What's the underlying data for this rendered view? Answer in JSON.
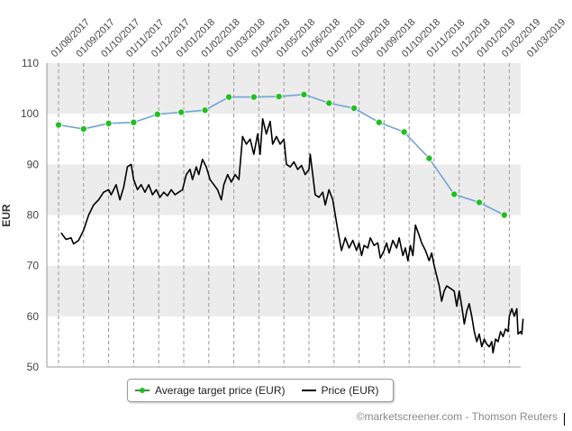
{
  "chart_data": {
    "type": "line",
    "title": "",
    "xlabel": "",
    "ylabel": "EUR",
    "ylim": [
      50,
      110
    ],
    "yticks": [
      50,
      60,
      70,
      80,
      90,
      100,
      110
    ],
    "x_tick_labels": [
      "01/08/2017",
      "01/09/2017",
      "01/10/2017",
      "01/11/2017",
      "01/12/2017",
      "01/01/2018",
      "01/02/2018",
      "01/03/2018",
      "01/04/2018",
      "01/05/2018",
      "01/06/2018",
      "01/07/2018",
      "01/08/2018",
      "01/09/2018",
      "01/10/2018",
      "01/11/2018",
      "01/12/2018",
      "01/01/2019",
      "01/02/2019",
      "01/03/2019"
    ],
    "series": [
      {
        "name": "Average target price (EUR)",
        "style": "dashed-with-markers",
        "color": "#6fa3d8",
        "marker_color": "#1fc01f",
        "points": [
          {
            "month": 0.0,
            "value": 97.8
          },
          {
            "month": 1.0,
            "value": 97.0
          },
          {
            "month": 2.0,
            "value": 98.1
          },
          {
            "month": 3.0,
            "value": 98.3
          },
          {
            "month": 3.95,
            "value": 99.9
          },
          {
            "month": 4.9,
            "value": 100.3
          },
          {
            "month": 5.85,
            "value": 100.7
          },
          {
            "month": 6.8,
            "value": 103.3
          },
          {
            "month": 7.8,
            "value": 103.3
          },
          {
            "month": 8.8,
            "value": 103.4
          },
          {
            "month": 9.8,
            "value": 103.8
          },
          {
            "month": 10.8,
            "value": 102.1
          },
          {
            "month": 11.8,
            "value": 101.1
          },
          {
            "month": 12.8,
            "value": 98.3
          },
          {
            "month": 13.8,
            "value": 96.4
          },
          {
            "month": 14.8,
            "value": 91.2
          },
          {
            "month": 15.8,
            "value": 84.1
          },
          {
            "month": 16.8,
            "value": 82.5
          },
          {
            "month": 17.8,
            "value": 80.0
          }
        ]
      },
      {
        "name": "Price (EUR)",
        "style": "solid",
        "color": "#000000",
        "points": [
          {
            "month": 0.1,
            "value": 76.5
          },
          {
            "month": 0.3,
            "value": 75.2
          },
          {
            "month": 0.5,
            "value": 75.5
          },
          {
            "month": 0.6,
            "value": 74.3
          },
          {
            "month": 0.8,
            "value": 75.0
          },
          {
            "month": 1.0,
            "value": 77.0
          },
          {
            "month": 1.2,
            "value": 80.0
          },
          {
            "month": 1.4,
            "value": 82.0
          },
          {
            "month": 1.6,
            "value": 83.0
          },
          {
            "month": 1.8,
            "value": 84.5
          },
          {
            "month": 2.0,
            "value": 85.0
          },
          {
            "month": 2.1,
            "value": 84.0
          },
          {
            "month": 2.3,
            "value": 86.0
          },
          {
            "month": 2.45,
            "value": 83.0
          },
          {
            "month": 2.6,
            "value": 85.5
          },
          {
            "month": 2.75,
            "value": 89.5
          },
          {
            "month": 2.9,
            "value": 90.0
          },
          {
            "month": 3.0,
            "value": 87.0
          },
          {
            "month": 3.15,
            "value": 85.0
          },
          {
            "month": 3.3,
            "value": 86.0
          },
          {
            "month": 3.45,
            "value": 84.5
          },
          {
            "month": 3.6,
            "value": 86.0
          },
          {
            "month": 3.75,
            "value": 84.0
          },
          {
            "month": 3.9,
            "value": 85.0
          },
          {
            "month": 4.05,
            "value": 83.5
          },
          {
            "month": 4.2,
            "value": 84.5
          },
          {
            "month": 4.35,
            "value": 83.8
          },
          {
            "month": 4.5,
            "value": 85.0
          },
          {
            "month": 4.65,
            "value": 84.0
          },
          {
            "month": 4.8,
            "value": 84.5
          },
          {
            "month": 4.95,
            "value": 85.0
          },
          {
            "month": 5.1,
            "value": 88.0
          },
          {
            "month": 5.25,
            "value": 89.0
          },
          {
            "month": 5.35,
            "value": 87.0
          },
          {
            "month": 5.5,
            "value": 89.5
          },
          {
            "month": 5.6,
            "value": 88.0
          },
          {
            "month": 5.75,
            "value": 91.0
          },
          {
            "month": 5.9,
            "value": 89.5
          },
          {
            "month": 6.05,
            "value": 87.0
          },
          {
            "month": 6.2,
            "value": 86.0
          },
          {
            "month": 6.35,
            "value": 85.0
          },
          {
            "month": 6.5,
            "value": 83.0
          },
          {
            "month": 6.6,
            "value": 86.0
          },
          {
            "month": 6.75,
            "value": 88.0
          },
          {
            "month": 6.9,
            "value": 86.5
          },
          {
            "month": 7.05,
            "value": 88.0
          },
          {
            "month": 7.2,
            "value": 87.0
          },
          {
            "month": 7.35,
            "value": 95.5
          },
          {
            "month": 7.5,
            "value": 94.0
          },
          {
            "month": 7.65,
            "value": 95.0
          },
          {
            "month": 7.8,
            "value": 92.0
          },
          {
            "month": 7.95,
            "value": 96.0
          },
          {
            "month": 8.05,
            "value": 92.0
          },
          {
            "month": 8.15,
            "value": 99.0
          },
          {
            "month": 8.3,
            "value": 96.0
          },
          {
            "month": 8.45,
            "value": 98.5
          },
          {
            "month": 8.55,
            "value": 94.0
          },
          {
            "month": 8.7,
            "value": 95.5
          },
          {
            "month": 8.85,
            "value": 94.0
          },
          {
            "month": 9.0,
            "value": 95.0
          },
          {
            "month": 9.1,
            "value": 90.0
          },
          {
            "month": 9.25,
            "value": 89.5
          },
          {
            "month": 9.4,
            "value": 90.5
          },
          {
            "month": 9.55,
            "value": 89.0
          },
          {
            "month": 9.7,
            "value": 89.8
          },
          {
            "month": 9.85,
            "value": 88.0
          },
          {
            "month": 10.0,
            "value": 89.0
          },
          {
            "month": 10.05,
            "value": 92.0
          },
          {
            "month": 10.15,
            "value": 88.0
          },
          {
            "month": 10.25,
            "value": 84.0
          },
          {
            "month": 10.4,
            "value": 83.5
          },
          {
            "month": 10.55,
            "value": 84.5
          },
          {
            "month": 10.65,
            "value": 82.0
          },
          {
            "month": 10.8,
            "value": 85.0
          },
          {
            "month": 10.95,
            "value": 83.0
          },
          {
            "month": 11.05,
            "value": 80.0
          },
          {
            "month": 11.15,
            "value": 77.0
          },
          {
            "month": 11.3,
            "value": 73.0
          },
          {
            "month": 11.45,
            "value": 75.5
          },
          {
            "month": 11.6,
            "value": 73.5
          },
          {
            "month": 11.75,
            "value": 75.0
          },
          {
            "month": 11.9,
            "value": 73.0
          },
          {
            "month": 12.0,
            "value": 74.5
          },
          {
            "month": 12.1,
            "value": 72.0
          },
          {
            "month": 12.2,
            "value": 74.0
          },
          {
            "month": 12.35,
            "value": 73.5
          },
          {
            "month": 12.45,
            "value": 75.5
          },
          {
            "month": 12.6,
            "value": 74.0
          },
          {
            "month": 12.75,
            "value": 74.5
          },
          {
            "month": 12.85,
            "value": 71.5
          },
          {
            "month": 13.0,
            "value": 73.0
          },
          {
            "month": 13.1,
            "value": 74.5
          },
          {
            "month": 13.2,
            "value": 72.5
          },
          {
            "month": 13.35,
            "value": 75.0
          },
          {
            "month": 13.5,
            "value": 73.5
          },
          {
            "month": 13.6,
            "value": 75.5
          },
          {
            "month": 13.75,
            "value": 72.0
          },
          {
            "month": 13.85,
            "value": 73.5
          },
          {
            "month": 13.95,
            "value": 71.0
          },
          {
            "month": 14.05,
            "value": 74.0
          },
          {
            "month": 14.15,
            "value": 72.0
          },
          {
            "month": 14.25,
            "value": 78.0
          },
          {
            "month": 14.4,
            "value": 76.0
          },
          {
            "month": 14.5,
            "value": 74.5
          },
          {
            "month": 14.65,
            "value": 73.0
          },
          {
            "month": 14.8,
            "value": 71.0
          },
          {
            "month": 14.9,
            "value": 72.5
          },
          {
            "month": 15.0,
            "value": 70.0
          },
          {
            "month": 15.1,
            "value": 68.0
          },
          {
            "month": 15.2,
            "value": 66.0
          },
          {
            "month": 15.3,
            "value": 63.0
          },
          {
            "month": 15.4,
            "value": 65.0
          },
          {
            "month": 15.5,
            "value": 66.0
          },
          {
            "month": 15.65,
            "value": 65.5
          },
          {
            "month": 15.8,
            "value": 65.0
          },
          {
            "month": 15.9,
            "value": 62.0
          },
          {
            "month": 16.0,
            "value": 65.0
          },
          {
            "month": 16.1,
            "value": 62.0
          },
          {
            "month": 16.2,
            "value": 58.5
          },
          {
            "month": 16.3,
            "value": 61.0
          },
          {
            "month": 16.4,
            "value": 62.5
          },
          {
            "month": 16.5,
            "value": 60.0
          },
          {
            "month": 16.6,
            "value": 57.0
          },
          {
            "month": 16.7,
            "value": 55.0
          },
          {
            "month": 16.8,
            "value": 56.5
          },
          {
            "month": 16.9,
            "value": 54.0
          },
          {
            "month": 17.0,
            "value": 55.5
          },
          {
            "month": 17.1,
            "value": 54.5
          },
          {
            "month": 17.2,
            "value": 54.0
          },
          {
            "month": 17.3,
            "value": 55.0
          },
          {
            "month": 17.35,
            "value": 52.8
          },
          {
            "month": 17.45,
            "value": 55.5
          },
          {
            "month": 17.55,
            "value": 55.0
          },
          {
            "month": 17.65,
            "value": 57.0
          },
          {
            "month": 17.75,
            "value": 56.0
          },
          {
            "month": 17.85,
            "value": 57.5
          },
          {
            "month": 17.95,
            "value": 57.0
          },
          {
            "month": 18.0,
            "value": 60.0
          },
          {
            "month": 18.1,
            "value": 61.5
          },
          {
            "month": 18.2,
            "value": 60.0
          },
          {
            "month": 18.3,
            "value": 61.5
          },
          {
            "month": 18.35,
            "value": 56.5
          },
          {
            "month": 18.45,
            "value": 57.0
          },
          {
            "month": 18.5,
            "value": 56.5
          },
          {
            "month": 18.55,
            "value": 59.5
          }
        ]
      }
    ],
    "legend": "bottom-center"
  },
  "legend": {
    "target_label": "Average target price (EUR)",
    "price_label": "Price (EUR)"
  },
  "credit": "©marketscreener.com - Thomson Reuters"
}
